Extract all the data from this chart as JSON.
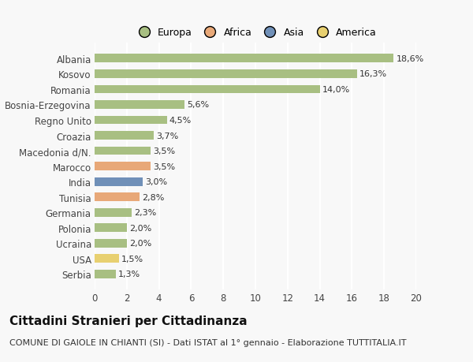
{
  "categories": [
    "Albania",
    "Kosovo",
    "Romania",
    "Bosnia-Erzegovina",
    "Regno Unito",
    "Croazia",
    "Macedonia d/N.",
    "Marocco",
    "India",
    "Tunisia",
    "Germania",
    "Polonia",
    "Ucraina",
    "USA",
    "Serbia"
  ],
  "values": [
    18.6,
    16.3,
    14.0,
    5.6,
    4.5,
    3.7,
    3.5,
    3.5,
    3.0,
    2.8,
    2.3,
    2.0,
    2.0,
    1.5,
    1.3
  ],
  "labels": [
    "18,6%",
    "16,3%",
    "14,0%",
    "5,6%",
    "4,5%",
    "3,7%",
    "3,5%",
    "3,5%",
    "3,0%",
    "2,8%",
    "2,3%",
    "2,0%",
    "2,0%",
    "1,5%",
    "1,3%"
  ],
  "bar_colors": [
    "#a8bf82",
    "#a8bf82",
    "#a8bf82",
    "#a8bf82",
    "#a8bf82",
    "#a8bf82",
    "#a8bf82",
    "#e8a878",
    "#7090b8",
    "#e8a878",
    "#a8bf82",
    "#a8bf82",
    "#a8bf82",
    "#e8d070",
    "#a8bf82"
  ],
  "legend_labels": [
    "Europa",
    "Africa",
    "Asia",
    "America"
  ],
  "legend_colors": [
    "#a8bf82",
    "#e8a878",
    "#7090b8",
    "#e8d070"
  ],
  "title": "Cittadini Stranieri per Cittadinanza",
  "subtitle": "COMUNE DI GAIOLE IN CHIANTI (SI) - Dati ISTAT al 1° gennaio - Elaborazione TUTTITALIA.IT",
  "xlim": [
    0,
    20
  ],
  "xticks": [
    0,
    2,
    4,
    6,
    8,
    10,
    12,
    14,
    16,
    18,
    20
  ],
  "background_color": "#f8f8f8",
  "grid_color": "#ffffff",
  "title_fontsize": 11,
  "subtitle_fontsize": 8,
  "label_fontsize": 8,
  "tick_fontsize": 8.5,
  "legend_fontsize": 9
}
